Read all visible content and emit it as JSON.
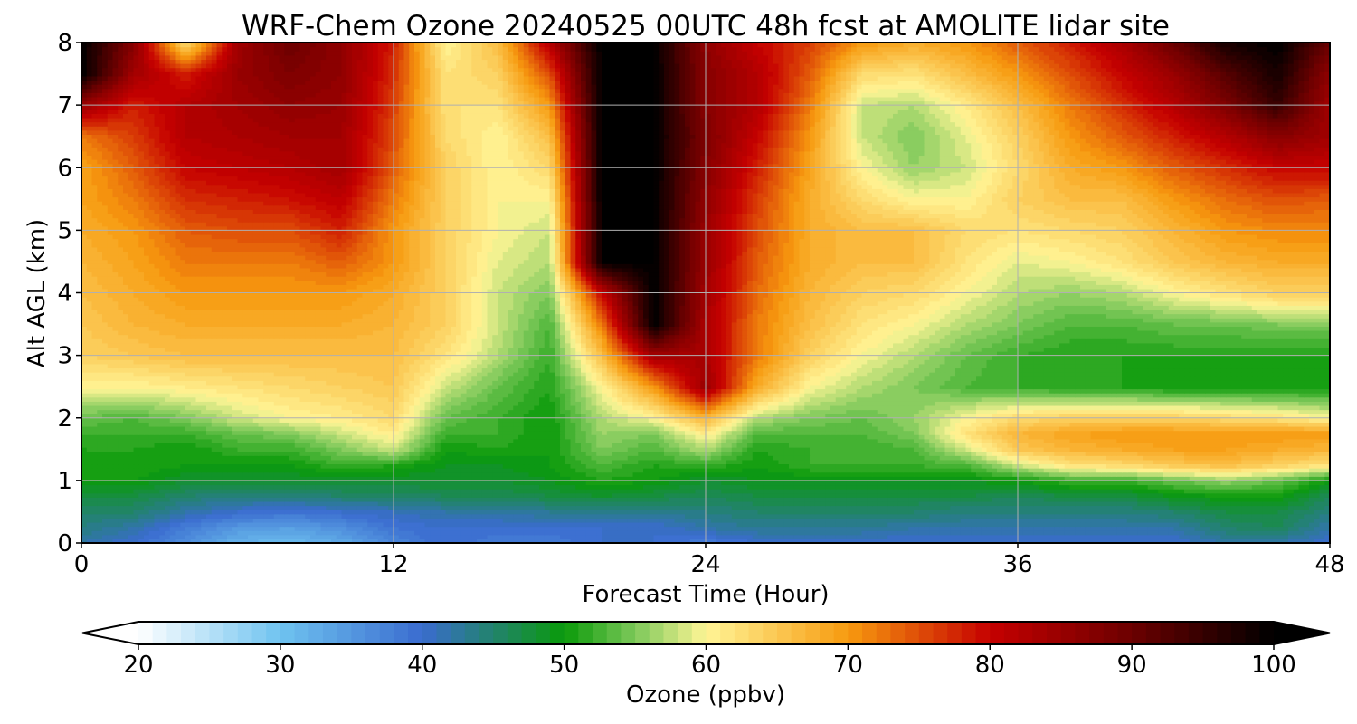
{
  "chart_data": {
    "type": "heatmap",
    "title": "WRF-Chem Ozone  20240525 00UTC 48h fcst at AMOLITE lidar site",
    "xlabel": "Forecast Time (Hour)",
    "ylabel": "Alt AGL (km)",
    "xlim": [
      0,
      48
    ],
    "ylim": [
      0,
      8
    ],
    "x_ticks": [
      0,
      12,
      24,
      36,
      48
    ],
    "y_ticks": [
      0,
      1,
      2,
      3,
      4,
      5,
      6,
      7,
      8
    ],
    "grid": true,
    "colorbar": {
      "label": "Ozone  (ppbv)",
      "min": 20,
      "max": 100,
      "ticks": [
        20,
        30,
        40,
        50,
        60,
        70,
        80,
        90,
        100
      ],
      "extend": "both",
      "orientation": "horizontal",
      "colors": {
        "20": "#ffffff",
        "30": "#6fc3f0",
        "40": "#3a6ccf",
        "50": "#0a9a0a",
        "55": "#7dc95a",
        "60": "#fff596",
        "70": "#f79a0f",
        "80": "#c60000",
        "90": "#6b0000",
        "100": "#000000"
      }
    },
    "x": [
      0,
      2,
      4,
      6,
      8,
      10,
      12,
      14,
      16,
      18,
      20,
      22,
      24,
      26,
      28,
      30,
      32,
      34,
      36,
      38,
      40,
      42,
      44,
      46,
      48
    ],
    "y": [
      0,
      0.25,
      0.5,
      0.75,
      1,
      1.25,
      1.5,
      1.75,
      2,
      2.5,
      3,
      3.5,
      4,
      4.5,
      5,
      5.5,
      6,
      6.5,
      7,
      7.5,
      8
    ],
    "z": [
      [
        42,
        40,
        36,
        32,
        31,
        33,
        37,
        40,
        38,
        38,
        40,
        40,
        38,
        40,
        40,
        40,
        40,
        40,
        40,
        40,
        40,
        40,
        42,
        42,
        40
      ],
      [
        44,
        42,
        38,
        35,
        34,
        36,
        39,
        40,
        40,
        40,
        40,
        40,
        42,
        43,
        43,
        43,
        42,
        42,
        42,
        42,
        42,
        42,
        45,
        46,
        42
      ],
      [
        45,
        45,
        42,
        40,
        39,
        40,
        41,
        42,
        42,
        43,
        43,
        43,
        44,
        45,
        45,
        45,
        45,
        44,
        44,
        44,
        44,
        45,
        47,
        47,
        44
      ],
      [
        47,
        47,
        45,
        44,
        44,
        45,
        45,
        46,
        46,
        47,
        48,
        47,
        46,
        47,
        47,
        47,
        47,
        47,
        46,
        47,
        47,
        49,
        50,
        50,
        46
      ],
      [
        50,
        50,
        48,
        48,
        48,
        48,
        48,
        48,
        48,
        49,
        51,
        50,
        48,
        49,
        49,
        49,
        49,
        49,
        50,
        52,
        52,
        54,
        56,
        54,
        50
      ],
      [
        50,
        51,
        50,
        50,
        50,
        52,
        51,
        49,
        49,
        50,
        53,
        51,
        52,
        50,
        52,
        52,
        52,
        53,
        58,
        62,
        63,
        65,
        66,
        64,
        62
      ],
      [
        51,
        51,
        50,
        52,
        52,
        55,
        58,
        50,
        51,
        50,
        55,
        53,
        57,
        51,
        52,
        52,
        53,
        58,
        65,
        67,
        68,
        69,
        69,
        68,
        67
      ],
      [
        52,
        52,
        52,
        54,
        55,
        58,
        61,
        52,
        52,
        50,
        56,
        55,
        61,
        53,
        53,
        53,
        55,
        62,
        67,
        69,
        70,
        70,
        70,
        70,
        70
      ],
      [
        54,
        53,
        55,
        58,
        60,
        61,
        63,
        54,
        52,
        50,
        57,
        60,
        67,
        57,
        55,
        54,
        56,
        60,
        63,
        64,
        64,
        64,
        63,
        62,
        60
      ],
      [
        60,
        60,
        61,
        62,
        63,
        64,
        65,
        58,
        54,
        51,
        60,
        70,
        85,
        68,
        60,
        57,
        55,
        53,
        52,
        51,
        51,
        50,
        50,
        50,
        50
      ],
      [
        64,
        65,
        66,
        66,
        66,
        66,
        66,
        62,
        57,
        52,
        66,
        84,
        83,
        72,
        64,
        60,
        57,
        54,
        52,
        51,
        51,
        51,
        51,
        51,
        51
      ],
      [
        65,
        67,
        68,
        68,
        68,
        68,
        67,
        64,
        58,
        53,
        72,
        100,
        83,
        72,
        66,
        62,
        60,
        57,
        55,
        53,
        53,
        54,
        54,
        55,
        55
      ],
      [
        66,
        68,
        70,
        70,
        70,
        70,
        68,
        64,
        58,
        55,
        80,
        100,
        84,
        73,
        67,
        64,
        63,
        60,
        57,
        56,
        57,
        60,
        62,
        64,
        64
      ],
      [
        67,
        69,
        72,
        72,
        72,
        74,
        70,
        64,
        59,
        57,
        100,
        100,
        85,
        74,
        68,
        66,
        66,
        62,
        59,
        60,
        62,
        65,
        67,
        68,
        68
      ],
      [
        68,
        70,
        74,
        75,
        75,
        78,
        70,
        64,
        60,
        58,
        100,
        100,
        85,
        75,
        68,
        66,
        66,
        63,
        62,
        63,
        64,
        67,
        70,
        71,
        71
      ],
      [
        69,
        72,
        77,
        78,
        79,
        81,
        72,
        64,
        60,
        60,
        100,
        100,
        86,
        76,
        68,
        63,
        60,
        60,
        64,
        66,
        66,
        70,
        73,
        75,
        74
      ],
      [
        69,
        74,
        80,
        81,
        82,
        84,
        74,
        64,
        60,
        63,
        100,
        100,
        87,
        78,
        69,
        60,
        56,
        58,
        63,
        68,
        70,
        74,
        77,
        80,
        80
      ],
      [
        72,
        76,
        82,
        83,
        84,
        84,
        75,
        63,
        60,
        66,
        100,
        100,
        88,
        80,
        70,
        58,
        55,
        59,
        64,
        70,
        74,
        78,
        82,
        87,
        84
      ],
      [
        85,
        78,
        82,
        84,
        86,
        85,
        76,
        62,
        62,
        70,
        100,
        100,
        87,
        82,
        72,
        58,
        57,
        61,
        66,
        72,
        77,
        82,
        88,
        95,
        84
      ],
      [
        100,
        84,
        78,
        85,
        88,
        86,
        77,
        62,
        64,
        75,
        100,
        100,
        87,
        82,
        74,
        63,
        62,
        66,
        70,
        75,
        80,
        85,
        92,
        98,
        86
      ],
      [
        100,
        87,
        62,
        84,
        90,
        86,
        78,
        60,
        66,
        82,
        100,
        100,
        86,
        80,
        76,
        70,
        68,
        70,
        74,
        78,
        83,
        90,
        98,
        100,
        90
      ]
    ]
  }
}
